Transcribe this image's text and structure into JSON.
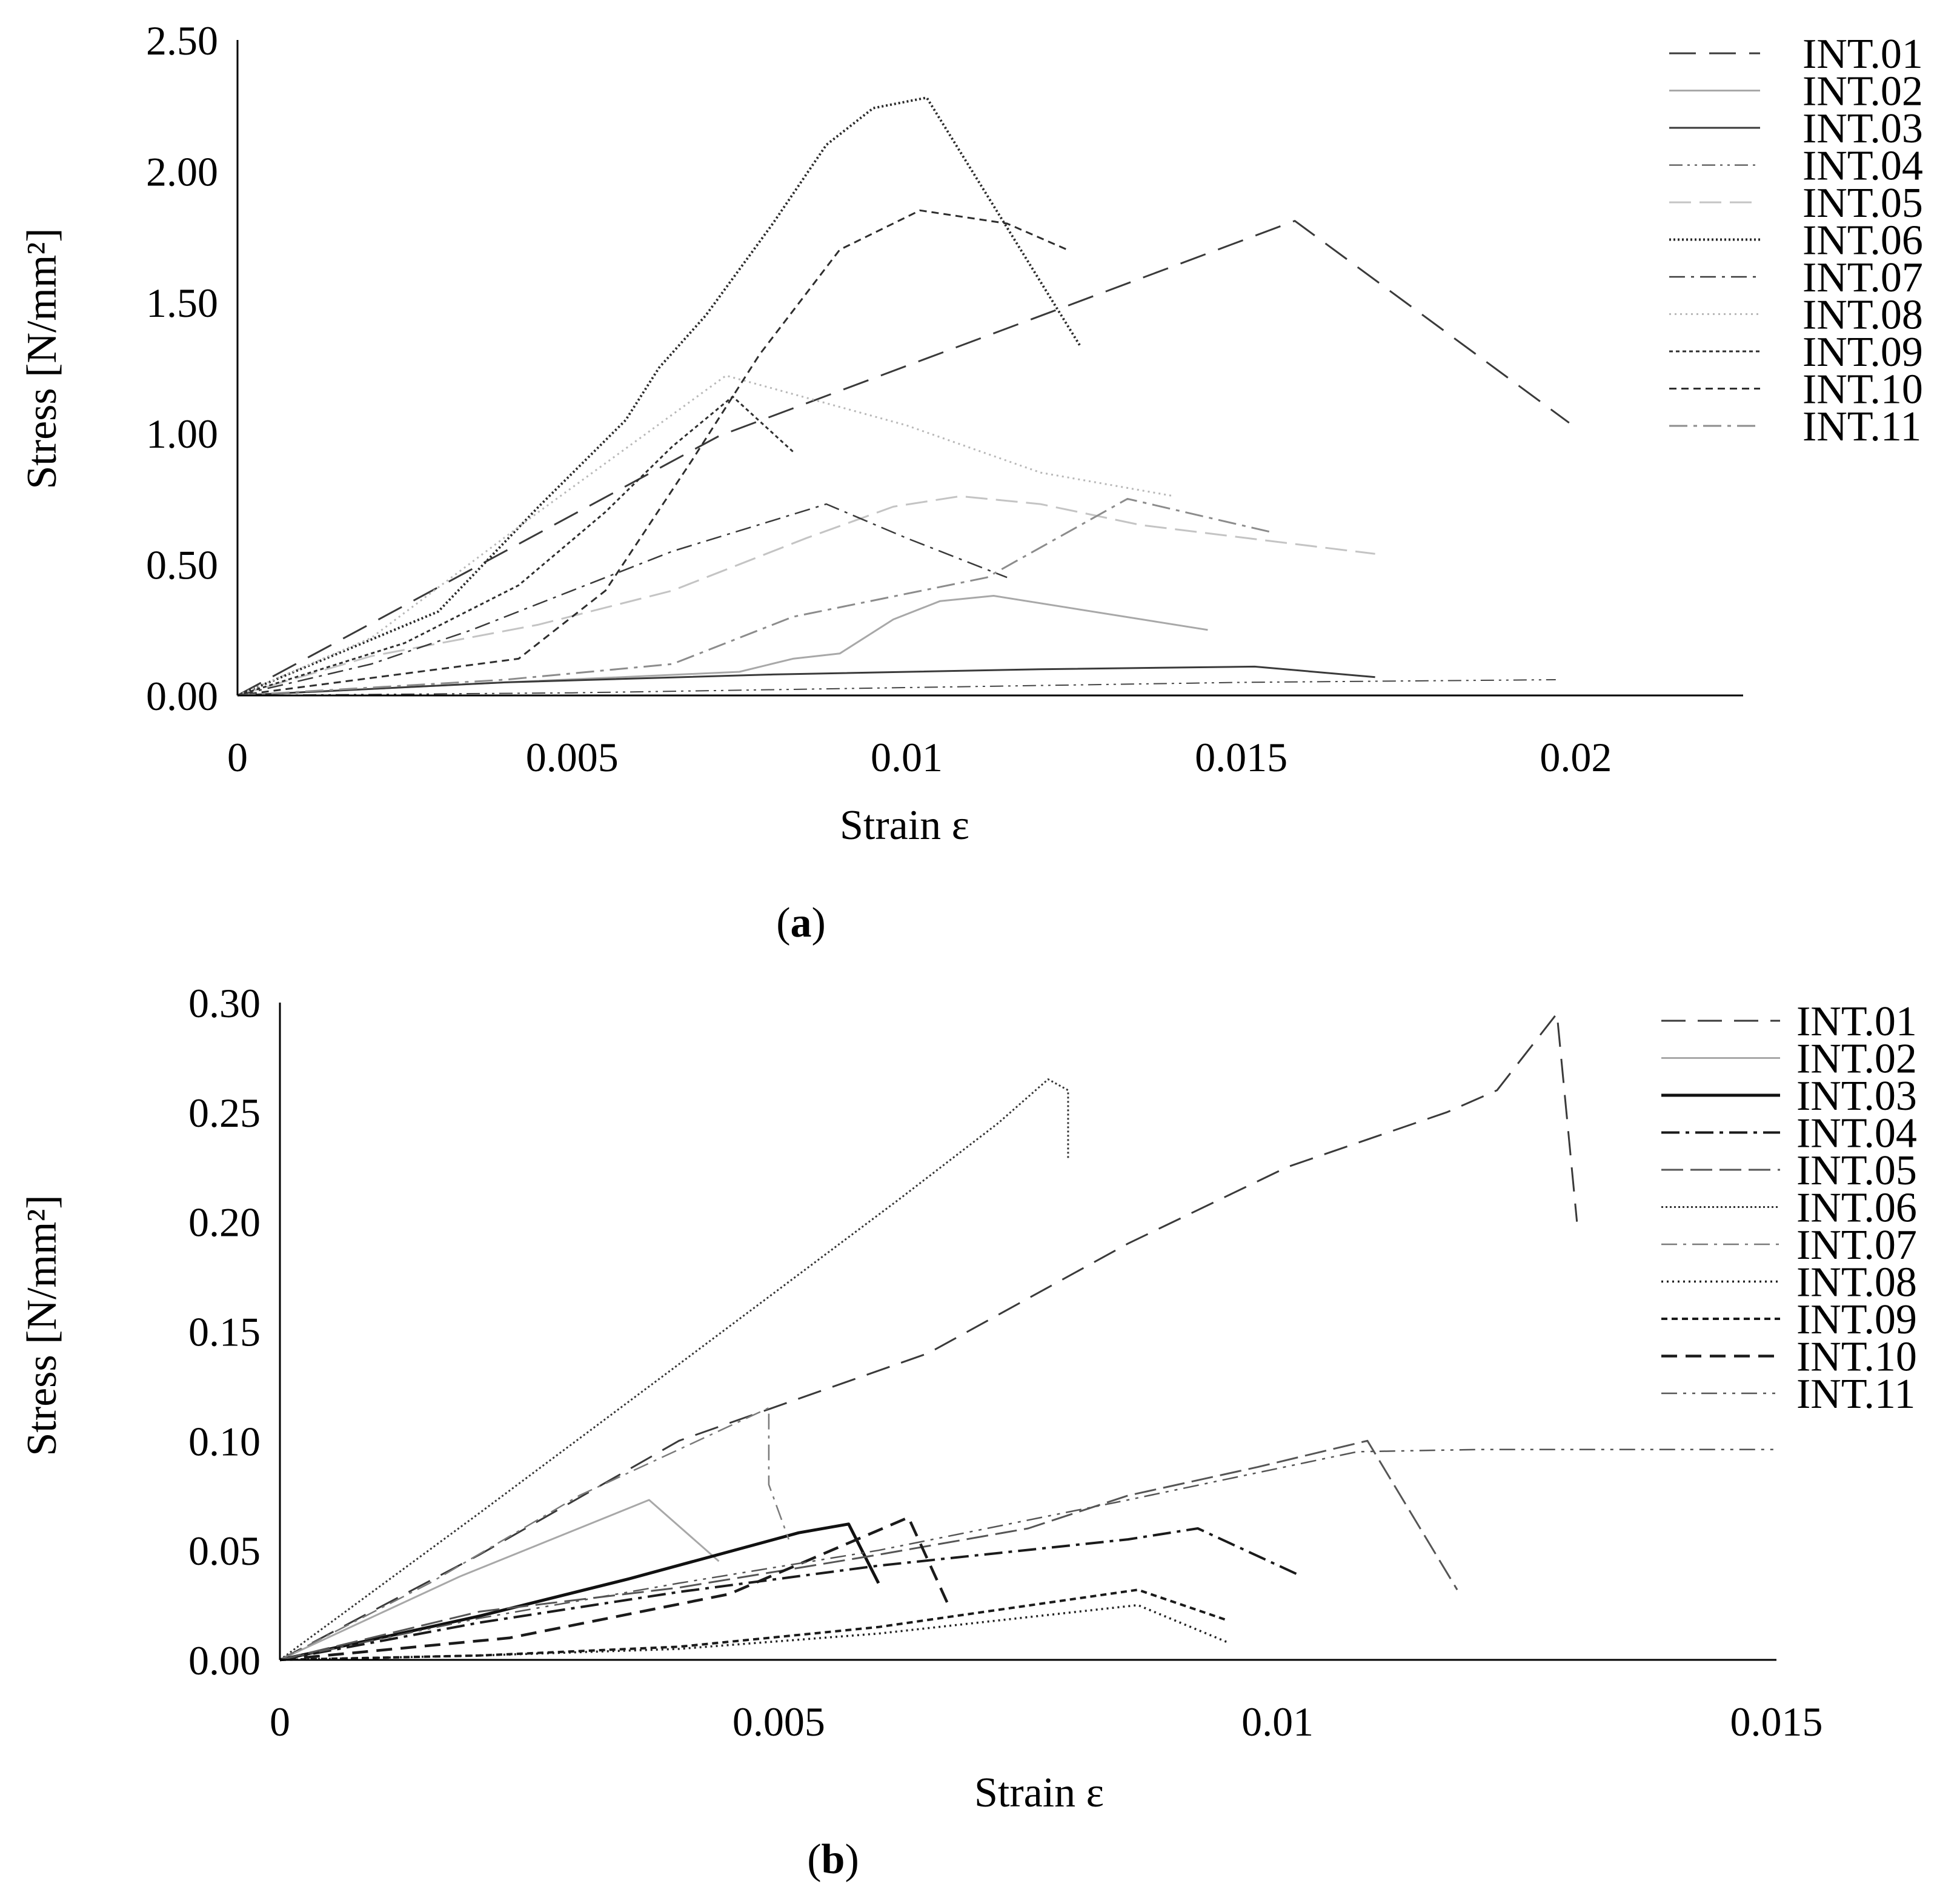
{
  "chart_data": [
    {
      "id": "a",
      "type": "line",
      "caption_letter": "a",
      "xlabel": "Strain ε",
      "ylabel": "Stress [N/mm²]",
      "xlim": [
        0,
        0.0225
      ],
      "ylim": [
        0,
        2.5
      ],
      "xticks": [
        0,
        0.005,
        0.01,
        0.015,
        0.02
      ],
      "xtick_labels": [
        "0",
        "0.005",
        "0.01",
        "0.015",
        "0.02"
      ],
      "yticks": [
        0,
        0.5,
        1.0,
        1.5,
        2.0,
        2.5
      ],
      "ytick_labels": [
        "0.00",
        "0.50",
        "1.00",
        "1.50",
        "2.00",
        "2.50"
      ],
      "grid": false,
      "legend_position": "right",
      "series": [
        {
          "name": "INT.01",
          "color": "#3a3a3a",
          "dash": "44 22",
          "width": 3,
          "x": [
            0,
            0.0072,
            0.0158,
            0.0199
          ],
          "y": [
            0,
            0.99,
            1.81,
            1.04
          ]
        },
        {
          "name": "INT.02",
          "color": "#a8a8a8",
          "dash": "",
          "width": 3,
          "x": [
            0,
            0.004,
            0.0075,
            0.0083,
            0.009,
            0.0098,
            0.0105,
            0.0113,
            0.0145
          ],
          "y": [
            0,
            0.05,
            0.09,
            0.14,
            0.16,
            0.29,
            0.36,
            0.38,
            0.25
          ]
        },
        {
          "name": "INT.03",
          "color": "#3a3a3a",
          "dash": "",
          "width": 3,
          "x": [
            0,
            0.004,
            0.008,
            0.012,
            0.0152,
            0.017
          ],
          "y": [
            0,
            0.05,
            0.08,
            0.1,
            0.11,
            0.07
          ]
        },
        {
          "name": "INT.04",
          "color": "#444444",
          "dash": "22 8 4 8 4 8",
          "width": 2,
          "x": [
            0,
            0.005,
            0.01,
            0.015,
            0.0197
          ],
          "y": [
            0,
            0.01,
            0.03,
            0.05,
            0.06
          ]
        },
        {
          "name": "INT.05",
          "color": "#c4c4c4",
          "dash": "36 14",
          "width": 3,
          "x": [
            0,
            0.002,
            0.0045,
            0.0065,
            0.0085,
            0.0098,
            0.0108,
            0.012,
            0.0135,
            0.017
          ],
          "y": [
            0,
            0.15,
            0.27,
            0.4,
            0.6,
            0.72,
            0.76,
            0.73,
            0.65,
            0.54
          ]
        },
        {
          "name": "INT.06",
          "color": "#2a2a2a",
          "dash": "3 4",
          "width": 4,
          "x": [
            0,
            0.003,
            0.0045,
            0.0058,
            0.0063,
            0.007,
            0.008,
            0.0088,
            0.0095,
            0.0103,
            0.0126
          ],
          "y": [
            0,
            0.32,
            0.72,
            1.05,
            1.25,
            1.45,
            1.8,
            2.1,
            2.24,
            2.28,
            1.33
          ]
        },
        {
          "name": "INT.07",
          "color": "#3a3a3a",
          "dash": "26 10 5 10",
          "width": 2.5,
          "x": [
            0,
            0.002,
            0.0035,
            0.005,
            0.0065,
            0.0088,
            0.01,
            0.0115
          ],
          "y": [
            0,
            0.12,
            0.25,
            0.4,
            0.55,
            0.73,
            0.6,
            0.45
          ]
        },
        {
          "name": "INT.08",
          "color": "#b8b8b8",
          "dash": "3 6",
          "width": 3,
          "x": [
            0,
            0.002,
            0.0045,
            0.0073,
            0.01,
            0.012,
            0.014
          ],
          "y": [
            0,
            0.22,
            0.7,
            1.22,
            1.03,
            0.85,
            0.76
          ]
        },
        {
          "name": "INT.09",
          "color": "#2e2e2e",
          "dash": "6 5",
          "width": 3,
          "x": [
            0,
            0.0025,
            0.0042,
            0.0055,
            0.0065,
            0.0074,
            0.0083
          ],
          "y": [
            0,
            0.2,
            0.42,
            0.7,
            0.95,
            1.14,
            0.93
          ]
        },
        {
          "name": "INT.10",
          "color": "#2e2e2e",
          "dash": "12 8",
          "width": 3,
          "x": [
            0,
            0.003,
            0.0042,
            0.0055,
            0.0068,
            0.0078,
            0.009,
            0.0102,
            0.0115,
            0.0124
          ],
          "y": [
            0,
            0.1,
            0.14,
            0.4,
            0.9,
            1.3,
            1.7,
            1.85,
            1.8,
            1.7
          ]
        },
        {
          "name": "INT.11",
          "color": "#8c8c8c",
          "dash": "30 10 6 10",
          "width": 3,
          "x": [
            0,
            0.004,
            0.0065,
            0.0083,
            0.0112,
            0.0133,
            0.0155
          ],
          "y": [
            0,
            0.06,
            0.12,
            0.3,
            0.45,
            0.75,
            0.62
          ]
        }
      ]
    },
    {
      "id": "b",
      "type": "line",
      "caption_letter": "b",
      "xlabel": "Strain ε",
      "ylabel": "Stress [N/mm²]",
      "xlim": [
        0,
        0.015
      ],
      "ylim": [
        0,
        0.3
      ],
      "xticks": [
        0,
        0.005,
        0.01,
        0.015
      ],
      "xtick_labels": [
        "0",
        "0.005",
        "0.01",
        "0.015"
      ],
      "yticks": [
        0,
        0.05,
        0.1,
        0.15,
        0.2,
        0.25,
        0.3
      ],
      "ytick_labels": [
        "0.00",
        "0.05",
        "0.10",
        "0.15",
        "0.20",
        "0.25",
        "0.30"
      ],
      "grid": false,
      "legend_position": "right",
      "series": [
        {
          "name": "INT.01",
          "color": "#3a3a3a",
          "dash": "40 20",
          "width": 3,
          "x": [
            0,
            0.002,
            0.004,
            0.0065,
            0.0085,
            0.0101,
            0.0117,
            0.0122,
            0.0128,
            0.013
          ],
          "y": [
            0,
            0.048,
            0.1,
            0.14,
            0.19,
            0.225,
            0.25,
            0.26,
            0.295,
            0.2
          ]
        },
        {
          "name": "INT.02",
          "color": "#a8a8a8",
          "dash": "",
          "width": 3,
          "x": [
            0,
            0.0018,
            0.0037,
            0.0044
          ],
          "y": [
            0,
            0.038,
            0.073,
            0.045
          ]
        },
        {
          "name": "INT.03",
          "color": "#111111",
          "dash": "",
          "width": 5,
          "x": [
            0,
            0.002,
            0.0035,
            0.0052,
            0.0057,
            0.006
          ],
          "y": [
            0,
            0.02,
            0.037,
            0.058,
            0.062,
            0.035
          ]
        },
        {
          "name": "INT.04",
          "color": "#1a1a1a",
          "dash": "30 10 6 10",
          "width": 4,
          "x": [
            0,
            0.002,
            0.004,
            0.006,
            0.0085,
            0.0092,
            0.0102
          ],
          "y": [
            0,
            0.017,
            0.031,
            0.043,
            0.055,
            0.06,
            0.039
          ]
        },
        {
          "name": "INT.05",
          "color": "#555555",
          "dash": "36 12",
          "width": 3,
          "x": [
            0,
            0.002,
            0.004,
            0.006,
            0.0075,
            0.0085,
            0.0098,
            0.0109,
            0.0118
          ],
          "y": [
            0,
            0.022,
            0.033,
            0.048,
            0.06,
            0.075,
            0.088,
            0.1,
            0.032
          ]
        },
        {
          "name": "INT.06",
          "color": "#333333",
          "dash": "3 4",
          "width": 3,
          "x": [
            0,
            0.002,
            0.004,
            0.0062,
            0.0072,
            0.0077,
            0.0079,
            0.0079
          ],
          "y": [
            0,
            0.067,
            0.135,
            0.21,
            0.245,
            0.265,
            0.26,
            0.228
          ]
        },
        {
          "name": "INT.07",
          "color": "#7a7a7a",
          "dash": "26 10 5 10",
          "width": 2.5,
          "x": [
            0,
            0.0015,
            0.003,
            0.0049,
            0.0049,
            0.0051
          ],
          "y": [
            0,
            0.035,
            0.075,
            0.115,
            0.08,
            0.055
          ]
        },
        {
          "name": "INT.08",
          "color": "#222222",
          "dash": "3 6",
          "width": 3.5,
          "x": [
            0,
            0.002,
            0.004,
            0.006,
            0.0086,
            0.0095
          ],
          "y": [
            0,
            0.002,
            0.005,
            0.012,
            0.025,
            0.008
          ]
        },
        {
          "name": "INT.09",
          "color": "#1a1a1a",
          "dash": "10 7",
          "width": 4,
          "x": [
            0,
            0.002,
            0.004,
            0.006,
            0.0086,
            0.0095
          ],
          "y": [
            0,
            0.002,
            0.006,
            0.015,
            0.032,
            0.018
          ]
        },
        {
          "name": "INT.10",
          "color": "#1a1a1a",
          "dash": "26 14",
          "width": 4.5,
          "x": [
            0,
            0.0023,
            0.0045,
            0.0063,
            0.0067
          ],
          "y": [
            0,
            0.01,
            0.03,
            0.065,
            0.025
          ]
        },
        {
          "name": "INT.11",
          "color": "#555555",
          "dash": "26 10 5 10 5 10",
          "width": 2.5,
          "x": [
            0,
            0.002,
            0.004,
            0.006,
            0.0085,
            0.0108,
            0.012,
            0.015
          ],
          "y": [
            0,
            0.019,
            0.035,
            0.05,
            0.073,
            0.095,
            0.096,
            0.096
          ]
        }
      ]
    }
  ]
}
